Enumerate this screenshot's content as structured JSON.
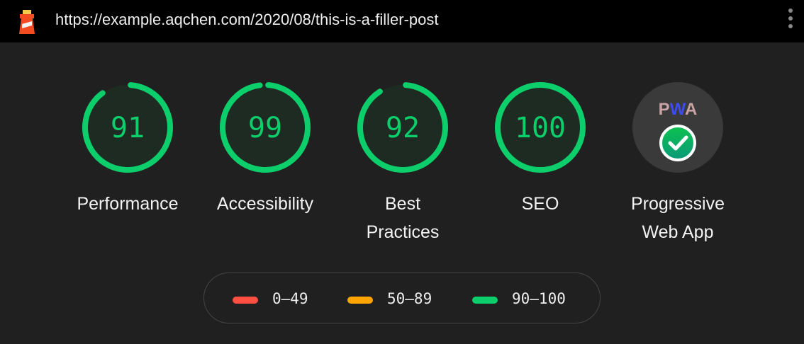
{
  "url": "https://example.aqchen.com/2020/08/this-is-a-filler-post",
  "icons": {
    "logo": "lighthouse-icon",
    "menu": "more-vert-icon",
    "pwa": "pwa-check-icon"
  },
  "colors": {
    "pass": "#0cce6b",
    "average": "#ffa400",
    "fail": "#ff4e42"
  },
  "categories": [
    {
      "label": "Performance",
      "label2": "",
      "score": 91
    },
    {
      "label": "Accessibility",
      "label2": "",
      "score": 99
    },
    {
      "label": "Best",
      "label2": "Practices",
      "score": 92
    },
    {
      "label": "SEO",
      "label2": "",
      "score": 100
    }
  ],
  "pwa": {
    "badge": "PWA",
    "label": "Progressive",
    "label2": "Web App"
  },
  "legend": [
    {
      "range": "0–49",
      "color": "#ff4e42"
    },
    {
      "range": "50–89",
      "color": "#ffa400"
    },
    {
      "range": "90–100",
      "color": "#0cce6b"
    }
  ]
}
